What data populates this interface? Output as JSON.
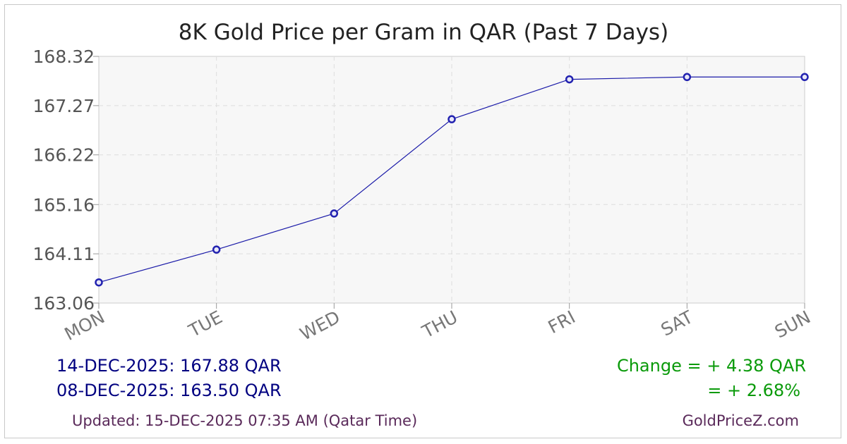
{
  "chart_data": {
    "type": "line",
    "title": "8K Gold Price per Gram in QAR (Past 7 Days)",
    "categories": [
      "MON",
      "TUE",
      "WED",
      "THU",
      "FRI",
      "SAT",
      "SUN"
    ],
    "series": [
      {
        "values": [
          163.5,
          164.2,
          164.97,
          166.98,
          167.83,
          167.88,
          167.88
        ]
      }
    ],
    "yticks": [
      "163.06",
      "164.11",
      "165.16",
      "166.22",
      "167.27",
      "168.32"
    ],
    "ylim": [
      163.06,
      168.32
    ],
    "grid": true,
    "colors": {
      "line": "#1a1aa8",
      "marker": "#2222b0",
      "plot_bg": "#f7f7f7",
      "grid": "#dddddd"
    }
  },
  "summary": {
    "latest": "14-DEC-2025: 167.88 QAR",
    "earliest": "08-DEC-2025: 163.50 QAR",
    "change_abs": "Change = + 4.38 QAR",
    "change_pct": "= + 2.68%"
  },
  "footer": {
    "updated": "Updated: 15-DEC-2025 07:35 AM (Qatar Time)",
    "brand": "GoldPriceZ.com"
  }
}
